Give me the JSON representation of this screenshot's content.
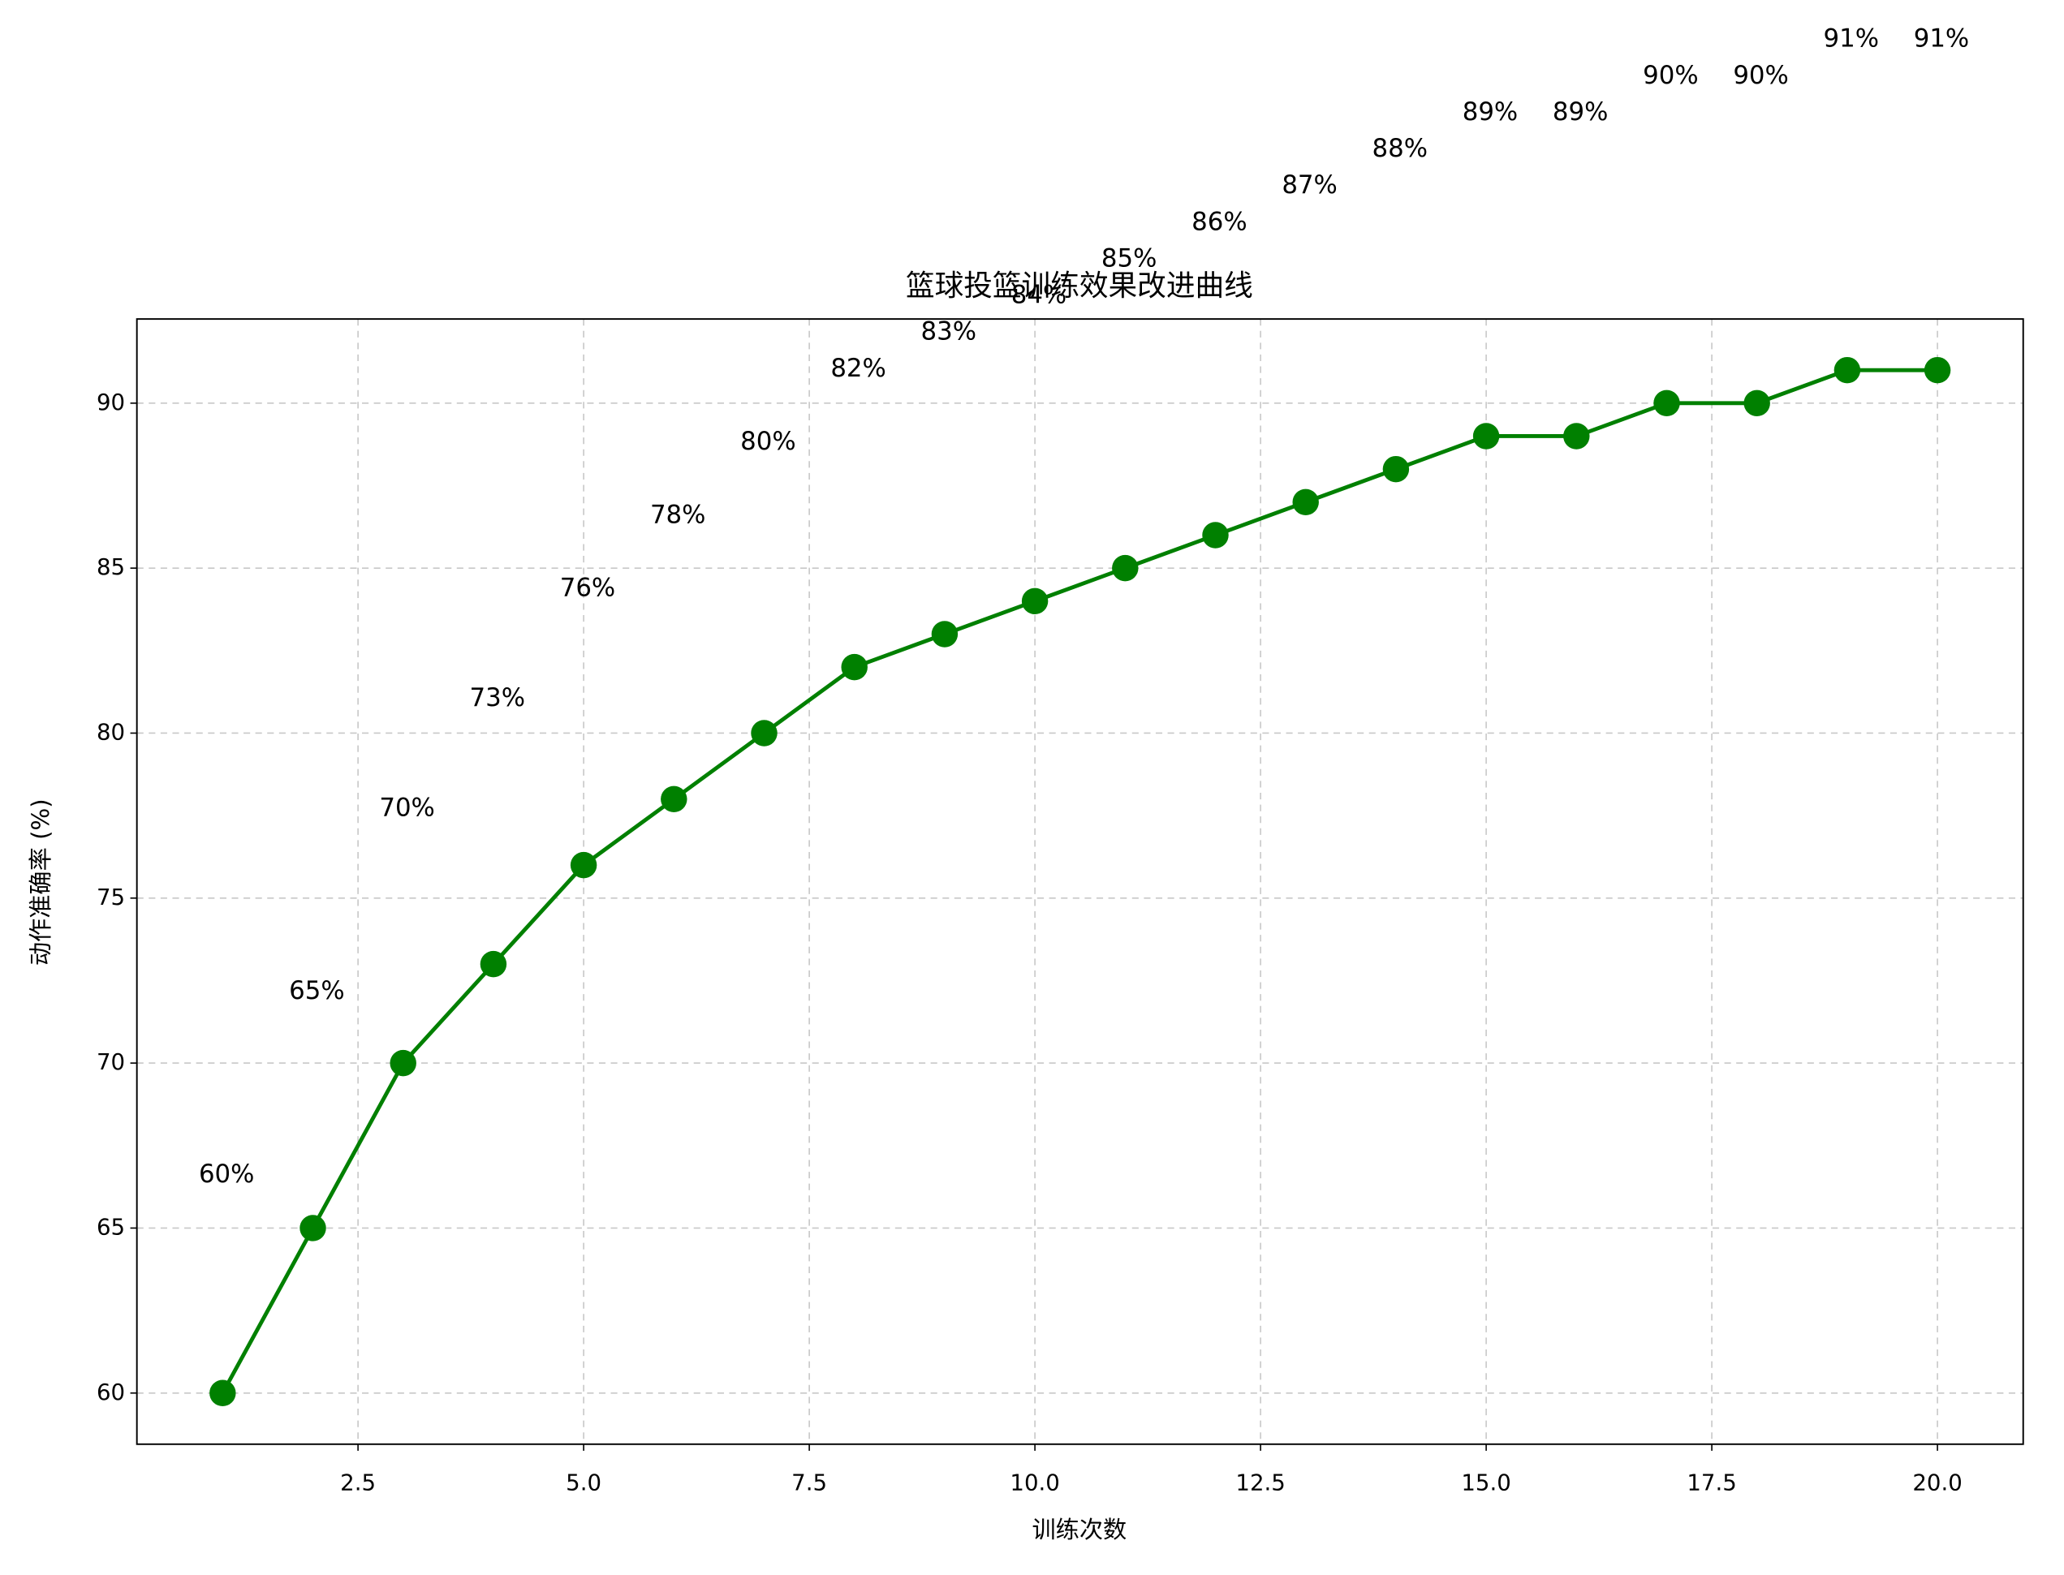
{
  "chart_data": {
    "type": "line",
    "title": "篮球投篮训练效果改进曲线",
    "x_label": "训练次数",
    "y_label": "动作准确率 (%)",
    "x": [
      1,
      2,
      3,
      4,
      5,
      6,
      7,
      8,
      9,
      10,
      11,
      12,
      13,
      14,
      15,
      16,
      17,
      18,
      19,
      20
    ],
    "series": [
      {
        "color": "#008000",
        "values": [
          60,
          65,
          70,
          73,
          76,
          78,
          80,
          82,
          83,
          84,
          85,
          86,
          87,
          88,
          89,
          89,
          90,
          90,
          91,
          91
        ],
        "value_labels": [
          "60%",
          "65%",
          "70%",
          "73%",
          "76%",
          "78%",
          "80%",
          "82%",
          "83%",
          "84%",
          "85%",
          "86%",
          "87%",
          "88%",
          "89%",
          "89%",
          "90%",
          "90%",
          "91%",
          "91%"
        ]
      }
    ],
    "xlim": [
      0.05,
      20.95
    ],
    "xticks": [
      2.5,
      {
        "value": 5,
        "label": "5.0"
      },
      7.5,
      {
        "value": 10,
        "label": "10.0"
      },
      12.5,
      {
        "value": 15,
        "label": "15.0"
      },
      17.5,
      {
        "value": 20,
        "label": "20.0"
      }
    ],
    "ylim": [
      58.45,
      92.55
    ],
    "yticks": [
      60,
      65,
      70,
      75,
      80,
      85,
      90
    ],
    "grid": true
  }
}
